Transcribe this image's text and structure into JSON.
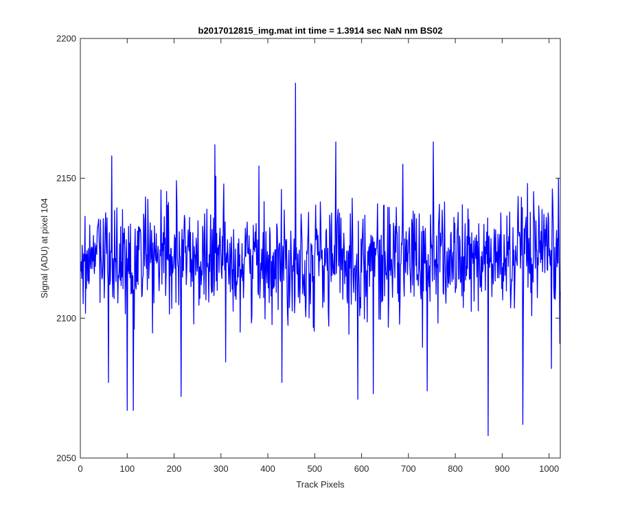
{
  "chart_data": {
    "type": "line",
    "title": "b2017012815_img.mat int time = 1.3914 sec  NaN nm BS02",
    "xlabel": "Track Pixels",
    "ylabel": "Signal (ADU) at pixel 104",
    "xlim": [
      0,
      1024
    ],
    "ylim": [
      2050,
      2200
    ],
    "xticks": [
      0,
      100,
      200,
      300,
      400,
      500,
      600,
      700,
      800,
      900,
      1000
    ],
    "yticks": [
      2050,
      2100,
      2150,
      2200
    ],
    "grid": false,
    "series": [
      {
        "color": "#0000ff",
        "x_start": 1,
        "x_step": 1,
        "count": 1024,
        "mean": 2121,
        "spread": 10,
        "features": [
          {
            "x": 459,
            "y": 2184
          },
          {
            "x": 870,
            "y": 2058
          },
          {
            "x": 944,
            "y": 2062
          },
          {
            "x": 100,
            "y": 2067
          },
          {
            "x": 113,
            "y": 2067
          },
          {
            "x": 215,
            "y": 2072
          },
          {
            "x": 592,
            "y": 2071
          },
          {
            "x": 625,
            "y": 2073
          },
          {
            "x": 740,
            "y": 2074
          },
          {
            "x": 1005,
            "y": 2082
          },
          {
            "x": 60,
            "y": 2077
          },
          {
            "x": 430,
            "y": 2077
          },
          {
            "x": 67,
            "y": 2158
          },
          {
            "x": 753,
            "y": 2163
          },
          {
            "x": 545,
            "y": 2163
          },
          {
            "x": 287,
            "y": 2162
          },
          {
            "x": 1020,
            "y": 2150
          }
        ]
      }
    ]
  }
}
